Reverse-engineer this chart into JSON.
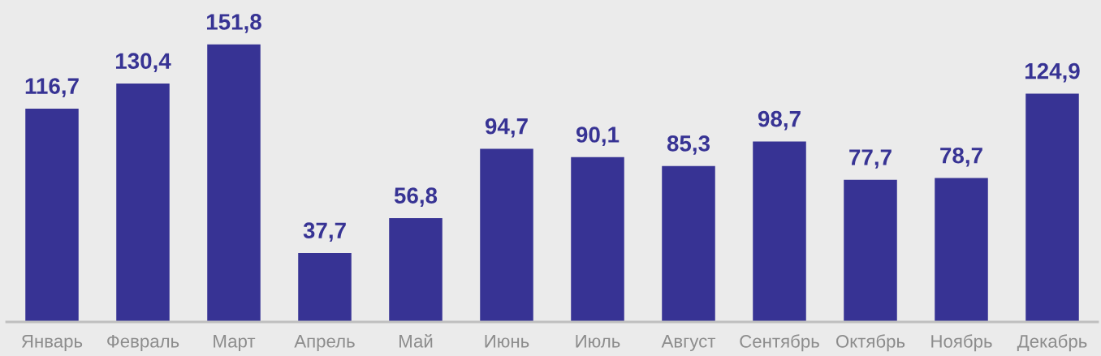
{
  "chart_data": {
    "type": "bar",
    "categories": [
      "Январь",
      "Февраль",
      "Март",
      "Апрель",
      "Май",
      "Июнь",
      "Июль",
      "Август",
      "Сентябрь",
      "Октябрь",
      "Ноябрь",
      "Декабрь"
    ],
    "values": [
      116.7,
      130.4,
      151.8,
      37.7,
      56.8,
      94.7,
      90.1,
      85.3,
      98.7,
      77.7,
      78.7,
      124.9
    ],
    "value_labels": [
      "116,7",
      "130,4",
      "151,8",
      "37,7",
      "56,8",
      "94,7",
      "90,1",
      "85,3",
      "98,7",
      "77,7",
      "78,7",
      "124,9"
    ],
    "color": "#373394"
  }
}
